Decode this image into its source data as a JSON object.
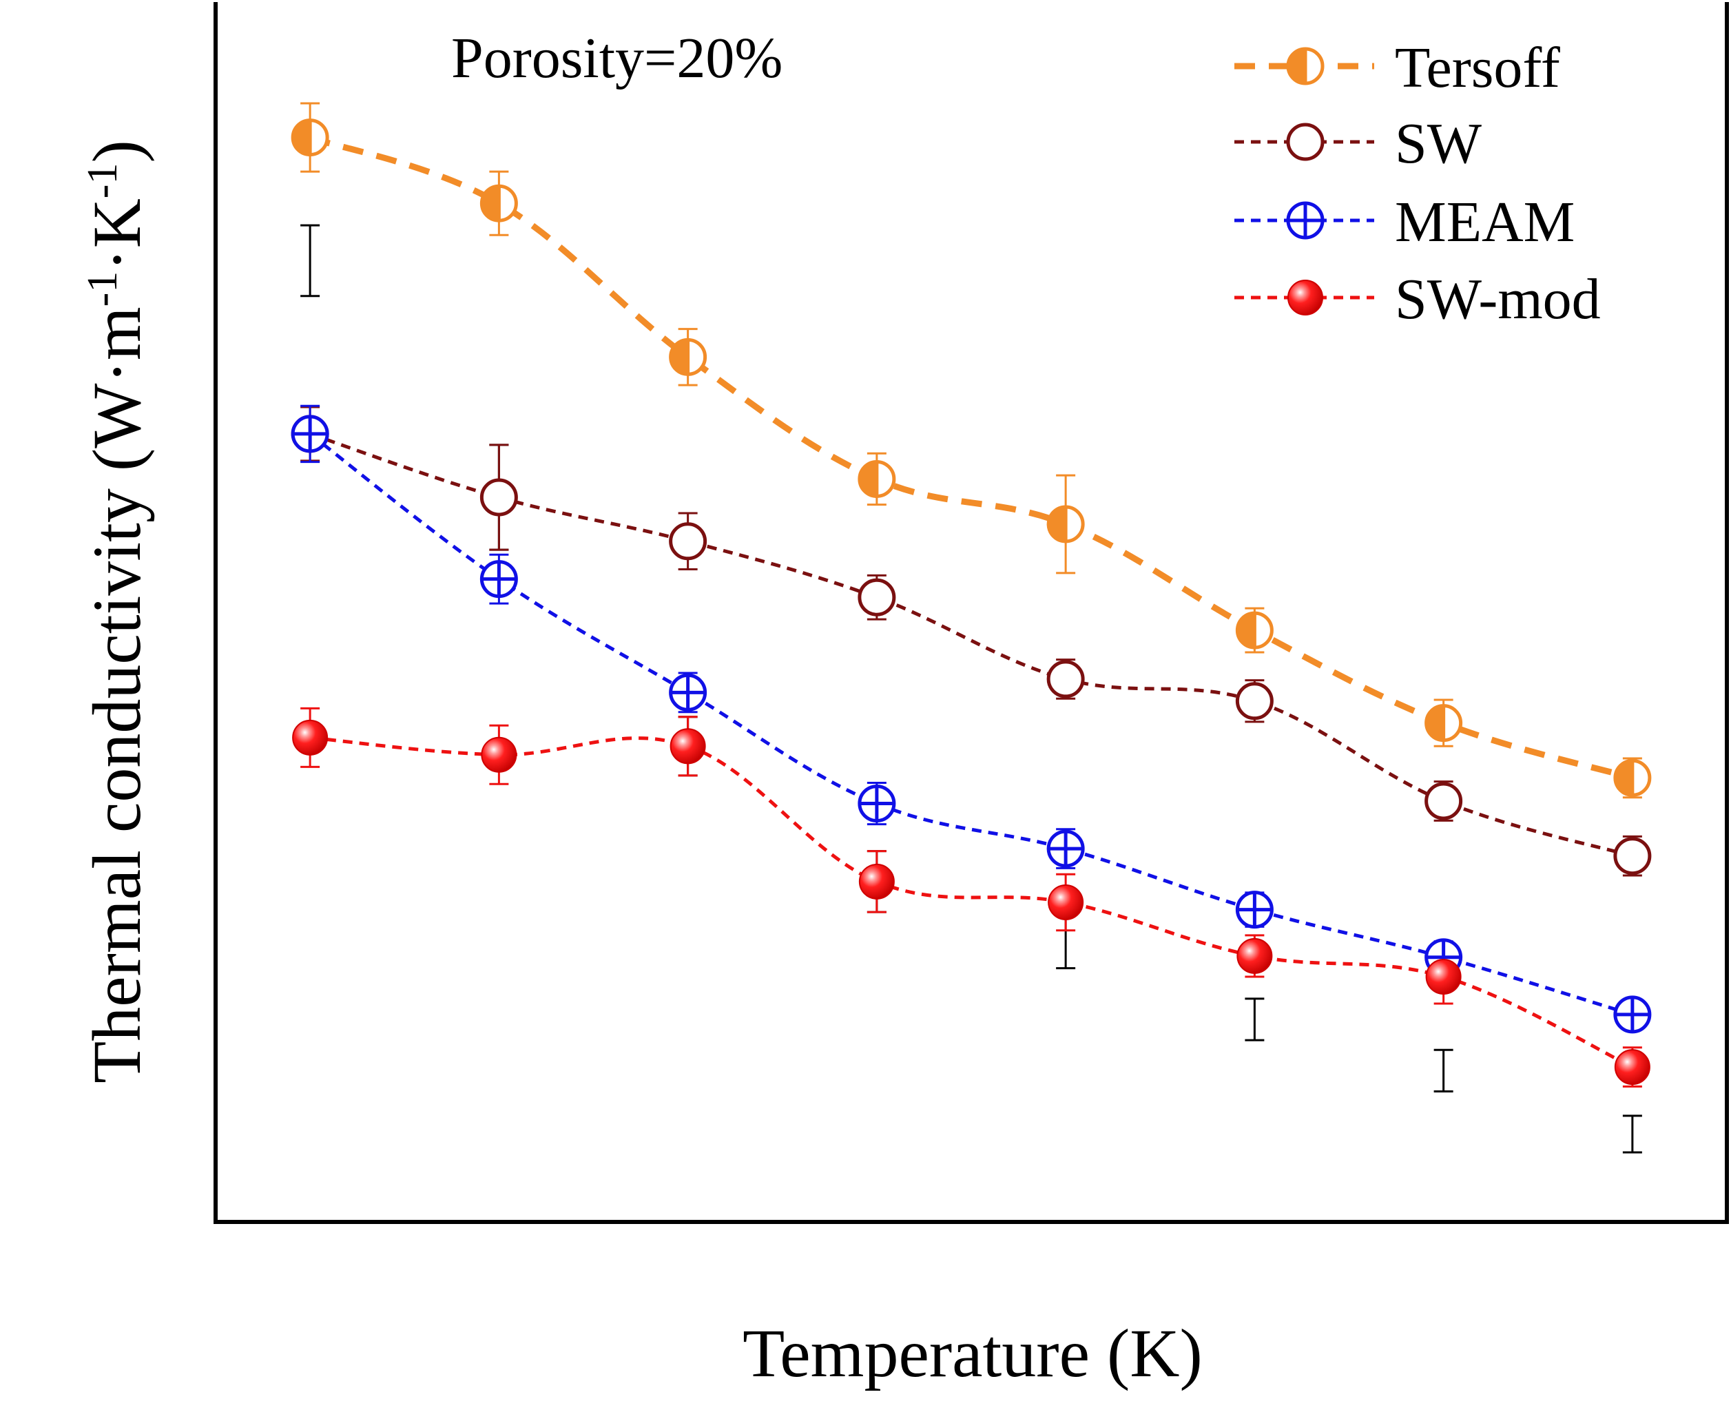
{
  "chart_data": {
    "type": "line",
    "annotation": "Porosity=20%",
    "xlabel": "Temperature (K)",
    "ylabel_main": "Thermal conductivity (W·m",
    "ylabel_parts": [
      "Thermal conductivity (W·m",
      "-1",
      "·K",
      "-1",
      ")"
    ],
    "xlim": [
      0.5,
      8.5
    ],
    "ylim": [
      0,
      100
    ],
    "x": [
      1,
      2,
      3,
      4,
      5,
      6,
      7,
      8
    ],
    "legend_position": "top-right",
    "series": [
      {
        "name": "Tersoff",
        "marker": "half-filled-circle",
        "color": "#f28c28",
        "dash": "thick",
        "values": [
          88.9,
          83.5,
          70.9,
          60.9,
          57.2,
          48.5,
          40.9,
          36.4
        ],
        "err": [
          2.8,
          2.6,
          2.3,
          2.1,
          4.0,
          1.8,
          1.9,
          1.6
        ]
      },
      {
        "name": "SW",
        "marker": "open-circle",
        "color": "#7b1010",
        "dash": "thin",
        "values": [
          64.6,
          59.4,
          55.8,
          51.2,
          44.5,
          42.7,
          34.5,
          30.0
        ],
        "err": [
          2.2,
          4.3,
          2.3,
          1.8,
          1.6,
          1.7,
          1.6,
          1.6
        ]
      },
      {
        "name": "MEAM",
        "marker": "crossed-circle",
        "color": "#1010e6",
        "dash": "thin",
        "values": [
          64.6,
          52.7,
          43.4,
          34.3,
          30.6,
          25.6,
          21.7,
          17.0
        ],
        "err": [
          2.3,
          2.0,
          1.6,
          1.7,
          1.6,
          1.4,
          1.3,
          1.2
        ]
      },
      {
        "name": "SW-mod",
        "marker": "filled-sphere",
        "color": "#ee1111",
        "dash": "thin",
        "values": [
          39.7,
          38.3,
          39.0,
          27.9,
          26.2,
          21.8,
          20.1,
          12.7
        ],
        "err": [
          2.4,
          2.4,
          2.4,
          2.5,
          2.3,
          1.7,
          2.2,
          1.6
        ]
      }
    ],
    "black_error_bars": [
      {
        "x": 1,
        "center": 78.8,
        "err": 2.9
      },
      {
        "x": 2,
        "center": 59.4,
        "err": 4.3
      },
      {
        "x": 3,
        "center": 39.0,
        "err": 2.4
      },
      {
        "x": 4,
        "center": 27.9,
        "err": 2.5
      },
      {
        "x": 5,
        "center": 24.0,
        "err": 3.2
      },
      {
        "x": 6,
        "center": 16.6,
        "err": 1.7
      },
      {
        "x": 7,
        "center": 12.4,
        "err": 1.7
      },
      {
        "x": 8,
        "center": 7.2,
        "err": 1.5
      }
    ]
  }
}
